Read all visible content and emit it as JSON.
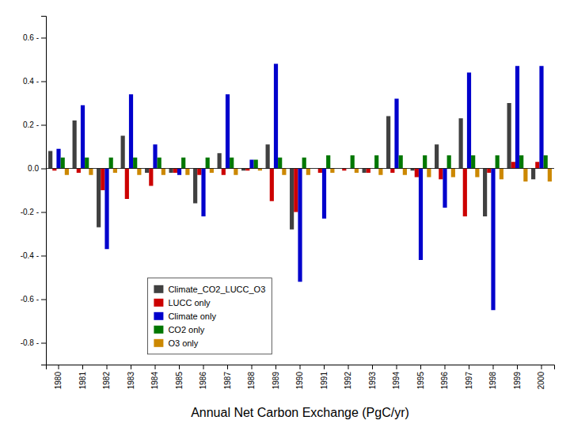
{
  "chart_data": {
    "type": "bar",
    "title": "Annual Net Carbon Exchange (PgC/yr)",
    "categories": [
      "1980",
      "1981",
      "1982",
      "1983",
      "1984",
      "1985",
      "1986",
      "1987",
      "1988",
      "1989",
      "1990",
      "1991",
      "1992",
      "1993",
      "1994",
      "1995",
      "1996",
      "1997",
      "1998",
      "1999",
      "2000"
    ],
    "series": [
      {
        "name": "Climate_CO2_LUCC_O3",
        "color": "#404040",
        "values": [
          0.08,
          0.22,
          -0.27,
          0.15,
          -0.02,
          -0.02,
          -0.16,
          0.07,
          -0.01,
          0.11,
          -0.28,
          0.0,
          0.0,
          -0.02,
          0.24,
          -0.01,
          0.11,
          0.23,
          -0.22,
          0.3,
          -0.05
        ]
      },
      {
        "name": "LUCC only",
        "color": "#cc0000",
        "values": [
          -0.01,
          -0.02,
          -0.1,
          -0.14,
          -0.08,
          -0.02,
          -0.03,
          -0.03,
          -0.01,
          -0.15,
          -0.2,
          -0.02,
          -0.01,
          -0.02,
          -0.02,
          -0.04,
          -0.05,
          -0.22,
          -0.02,
          0.03,
          0.03
        ]
      },
      {
        "name": "Climate only",
        "color": "#0000cc",
        "values": [
          0.09,
          0.29,
          -0.37,
          0.34,
          0.11,
          -0.03,
          -0.22,
          0.34,
          0.04,
          0.48,
          -0.52,
          -0.23,
          0.0,
          0.0,
          0.32,
          -0.42,
          -0.18,
          0.44,
          -0.65,
          0.47,
          0.47
        ]
      },
      {
        "name": "CO2 only",
        "color": "#007700",
        "values": [
          0.05,
          0.05,
          0.05,
          0.05,
          0.05,
          0.05,
          0.05,
          0.05,
          0.04,
          0.05,
          0.05,
          0.06,
          0.06,
          0.06,
          0.06,
          0.06,
          0.06,
          0.06,
          0.06,
          0.06,
          0.06
        ]
      },
      {
        "name": "O3 only",
        "color": "#cc8800",
        "values": [
          -0.03,
          -0.03,
          -0.02,
          -0.03,
          -0.03,
          -0.03,
          -0.02,
          -0.03,
          -0.01,
          -0.03,
          -0.03,
          -0.02,
          -0.02,
          -0.03,
          -0.03,
          -0.04,
          -0.04,
          -0.04,
          -0.05,
          -0.06,
          -0.06
        ]
      }
    ],
    "ylim": [
      -0.9,
      0.7
    ],
    "yticks": [
      {
        "value": -0.8,
        "label": "-0.8 -"
      },
      {
        "value": -0.6,
        "label": "-0.6 -"
      },
      {
        "value": -0.4,
        "label": "-0.4 -"
      },
      {
        "value": -0.2,
        "label": "-0.2 -"
      },
      {
        "value": 0.0,
        "label": "0.0"
      },
      {
        "value": 0.2,
        "label": "0.2 -"
      },
      {
        "value": 0.4,
        "label": "0.4 -"
      },
      {
        "value": 0.6,
        "label": "0.6 -"
      }
    ],
    "grid": false,
    "legend": "lower left"
  }
}
